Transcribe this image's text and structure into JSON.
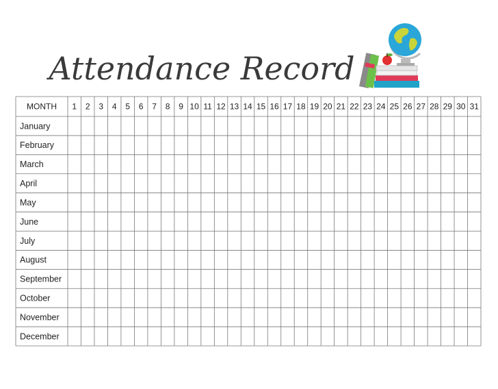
{
  "header": {
    "title": "Attendance Record"
  },
  "table": {
    "columns": [
      "MONTH",
      "1",
      "2",
      "3",
      "4",
      "5",
      "6",
      "7",
      "8",
      "9",
      "10",
      "11",
      "12",
      "13",
      "14",
      "15",
      "16",
      "17",
      "18",
      "19",
      "20",
      "21",
      "22",
      "23",
      "24",
      "25",
      "26",
      "27",
      "28",
      "29",
      "30",
      "31"
    ],
    "rows": [
      "January",
      "February",
      "March",
      "April",
      "May",
      "June",
      "July",
      "August",
      "September",
      "October",
      "November",
      "December"
    ]
  }
}
